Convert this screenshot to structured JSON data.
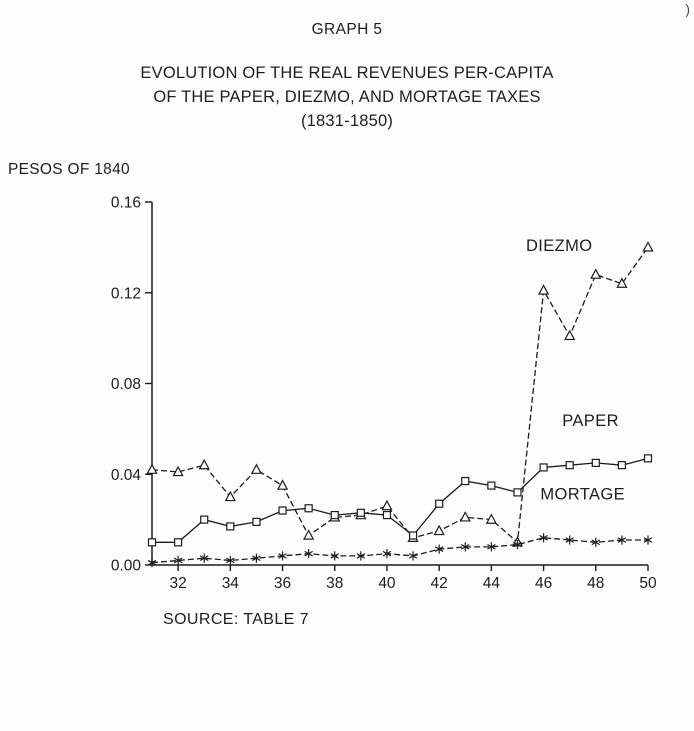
{
  "page": {
    "graph_number": "GRAPH 5",
    "title_line1": "EVOLUTION OF THE REAL REVENUES PER-CAPITA",
    "title_line2": "OF THE PAPER, DIEZMO, AND MORTAGE TAXES",
    "title_line3": "(1831-1850)",
    "y_axis_unit": "PESOS OF 1840",
    "source": "SOURCE: TABLE 7",
    "corner_mark": ")"
  },
  "chart_data": {
    "type": "line",
    "title": "EVOLUTION OF THE REAL REVENUES PER-CAPITA OF THE PAPER, DIEZMO, AND MORTAGE TAXES (1831-1850)",
    "xlabel": "",
    "ylabel": "PESOS OF 1840",
    "xlim": [
      31,
      50
    ],
    "ylim": [
      0,
      0.16
    ],
    "grid": false,
    "legend_position": "inline-annotations",
    "x": [
      31,
      32,
      33,
      34,
      35,
      36,
      37,
      38,
      39,
      40,
      41,
      42,
      43,
      44,
      45,
      46,
      47,
      48,
      49,
      50
    ],
    "xticks": [
      32,
      34,
      36,
      38,
      40,
      42,
      44,
      46,
      48,
      50
    ],
    "xtick_labels": [
      "32",
      "34",
      "36",
      "38",
      "40",
      "42",
      "44",
      "46",
      "48",
      "50"
    ],
    "yticks": [
      0,
      0.04,
      0.08,
      0.12,
      0.16
    ],
    "ytick_labels": [
      "0.00",
      "0.04",
      "0.08",
      "0.12",
      "0.16"
    ],
    "series": [
      {
        "name": "DIEZMO",
        "marker": "triangle",
        "line": "dashed",
        "color": "#1c1c1c",
        "values": [
          0.042,
          0.041,
          0.044,
          0.03,
          0.042,
          0.035,
          0.013,
          0.021,
          0.022,
          0.026,
          0.012,
          0.015,
          0.021,
          0.02,
          0.01,
          0.121,
          0.101,
          0.128,
          0.124,
          0.14
        ]
      },
      {
        "name": "PAPER",
        "marker": "square",
        "line": "solid",
        "color": "#1c1c1c",
        "values": [
          0.01,
          0.01,
          0.02,
          0.017,
          0.019,
          0.024,
          0.025,
          0.022,
          0.023,
          0.022,
          0.013,
          0.027,
          0.037,
          0.035,
          0.032,
          0.043,
          0.044,
          0.045,
          0.044,
          0.047
        ]
      },
      {
        "name": "MORTAGE",
        "marker": "asterisk",
        "line": "dashed",
        "color": "#1c1c1c",
        "values": [
          0.001,
          0.002,
          0.003,
          0.002,
          0.003,
          0.004,
          0.005,
          0.004,
          0.004,
          0.005,
          0.004,
          0.007,
          0.008,
          0.008,
          0.009,
          0.012,
          0.011,
          0.01,
          0.011,
          0.011
        ]
      }
    ],
    "annotations": [
      {
        "text": "DIEZMO",
        "x": 46.6,
        "y": 0.141
      },
      {
        "text": "PAPER",
        "x": 47.8,
        "y": 0.064
      },
      {
        "text": "MORTAGE",
        "x": 47.5,
        "y": 0.0315
      }
    ]
  }
}
